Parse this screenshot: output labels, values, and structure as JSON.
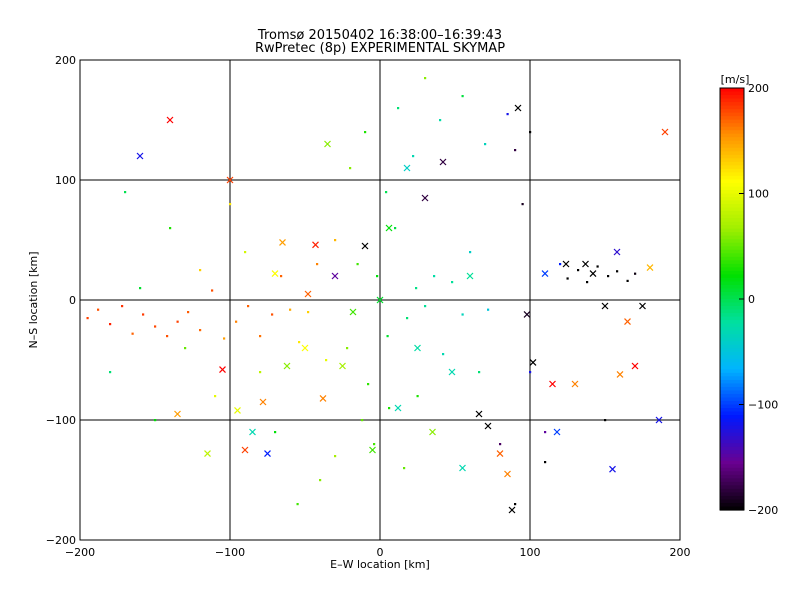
{
  "chart_data": {
    "type": "scatter",
    "title": "Tromsø 20150402 16:38:00–16:39:43",
    "subtitle": "RwPretec (8p) EXPERIMENTAL SKYMAP",
    "xlabel": "E–W location [km]",
    "ylabel": "N–S location [km]",
    "xlim": [
      -200,
      200
    ],
    "ylim": [
      -200,
      200
    ],
    "xticks": [
      -200,
      -100,
      0,
      100,
      200
    ],
    "yticks": [
      -200,
      -100,
      0,
      100,
      200
    ],
    "grid": true,
    "grid_lines": {
      "x": [
        -100,
        0,
        100
      ],
      "y": [
        -100,
        0,
        100
      ]
    },
    "colorbar": {
      "label": "[m/s]",
      "range": [
        -200,
        200
      ],
      "ticks": [
        200,
        100,
        0,
        -100,
        -200
      ],
      "colors": [
        "#000000",
        "#6a0090",
        "#0018ff",
        "#00b4ff",
        "#00e0a0",
        "#00e000",
        "#a0ef00",
        "#ffff00",
        "#ff9000",
        "#ff0000"
      ]
    },
    "markers": [
      "dot",
      "cross"
    ],
    "series": [
      {
        "values": [
          [
            -195,
            -15,
            180
          ],
          [
            -188,
            -8,
            175
          ],
          [
            -180,
            -20,
            190
          ],
          [
            -172,
            -5,
            185
          ],
          [
            -165,
            -28,
            170
          ],
          [
            -158,
            -12,
            182
          ],
          [
            -150,
            -22,
            178
          ],
          [
            -142,
            -30,
            175
          ],
          [
            -135,
            -18,
            180
          ],
          [
            -128,
            -10,
            172
          ],
          [
            -120,
            -25,
            168
          ],
          [
            -112,
            8,
            176
          ],
          [
            -104,
            -32,
            150
          ],
          [
            -96,
            -18,
            160
          ],
          [
            -88,
            -5,
            170
          ],
          [
            -80,
            -30,
            165
          ],
          [
            -72,
            -12,
            175
          ],
          [
            -66,
            20,
            170
          ],
          [
            -60,
            -8,
            145
          ],
          [
            -54,
            -35,
            120
          ],
          [
            -48,
            -10,
            130
          ],
          [
            -42,
            30,
            160
          ],
          [
            -36,
            -50,
            100
          ],
          [
            -30,
            50,
            140
          ],
          [
            -22,
            -40,
            60
          ],
          [
            -15,
            30,
            40
          ],
          [
            -8,
            -70,
            35
          ],
          [
            -2,
            20,
            20
          ],
          [
            5,
            -30,
            10
          ],
          [
            10,
            60,
            5
          ],
          [
            18,
            -15,
            -10
          ],
          [
            24,
            10,
            -15
          ],
          [
            30,
            -5,
            -20
          ],
          [
            36,
            20,
            -25
          ],
          [
            42,
            -45,
            -30
          ],
          [
            48,
            15,
            -20
          ],
          [
            55,
            -12,
            -35
          ],
          [
            60,
            40,
            -40
          ],
          [
            66,
            -60,
            -10
          ],
          [
            72,
            -8,
            -50
          ],
          [
            -12,
            -100,
            50
          ],
          [
            -4,
            -120,
            40
          ],
          [
            6,
            -90,
            30
          ],
          [
            16,
            -140,
            50
          ],
          [
            25,
            -80,
            30
          ],
          [
            -30,
            -130,
            70
          ],
          [
            -20,
            110,
            60
          ],
          [
            -10,
            140,
            30
          ],
          [
            4,
            90,
            0
          ],
          [
            12,
            160,
            -10
          ],
          [
            22,
            120,
            -30
          ],
          [
            30,
            185,
            60
          ],
          [
            40,
            150,
            -25
          ],
          [
            55,
            170,
            5
          ],
          [
            70,
            130,
            -35
          ],
          [
            85,
            155,
            -120
          ],
          [
            -40,
            -150,
            60
          ],
          [
            -55,
            -170,
            40
          ],
          [
            -70,
            -110,
            20
          ],
          [
            -80,
            -60,
            80
          ],
          [
            -90,
            40,
            90
          ],
          [
            -100,
            80,
            120
          ],
          [
            -110,
            -80,
            100
          ],
          [
            -120,
            25,
            130
          ],
          [
            -130,
            -40,
            50
          ],
          [
            -140,
            60,
            30
          ],
          [
            -150,
            -100,
            20
          ],
          [
            -160,
            10,
            10
          ],
          [
            -170,
            90,
            0
          ],
          [
            -180,
            -60,
            -10
          ],
          [
            80,
            -120,
            -170
          ],
          [
            90,
            -170,
            -200
          ],
          [
            100,
            -60,
            -120
          ],
          [
            110,
            -110,
            -150
          ],
          [
            120,
            30,
            -110
          ],
          [
            125,
            18,
            -205
          ],
          [
            132,
            25,
            -210
          ],
          [
            138,
            15,
            -200
          ],
          [
            145,
            28,
            -205
          ],
          [
            152,
            20,
            -210
          ],
          [
            158,
            24,
            -200
          ],
          [
            165,
            16,
            -205
          ],
          [
            170,
            22,
            -195
          ],
          [
            150,
            -100,
            -200
          ],
          [
            110,
            -135,
            -200
          ],
          [
            95,
            80,
            -190
          ],
          [
            100,
            140,
            -200
          ],
          [
            90,
            125,
            -180
          ]
        ]
      },
      {
        "values": [
          [
            -140,
            150,
            200
          ],
          [
            -160,
            120,
            -120
          ],
          [
            -100,
            100,
            180
          ],
          [
            -105,
            -58,
            200
          ],
          [
            -90,
            -125,
            180
          ],
          [
            -78,
            -85,
            160
          ],
          [
            -75,
            -128,
            -110
          ],
          [
            -70,
            22,
            110
          ],
          [
            -65,
            48,
            150
          ],
          [
            -50,
            -40,
            110
          ],
          [
            -48,
            5,
            170
          ],
          [
            -43,
            46,
            190
          ],
          [
            -38,
            -82,
            160
          ],
          [
            -35,
            130,
            60
          ],
          [
            -30,
            20,
            -150
          ],
          [
            -25,
            -55,
            70
          ],
          [
            -18,
            -10,
            40
          ],
          [
            -10,
            45,
            -210
          ],
          [
            -5,
            -125,
            40
          ],
          [
            0,
            0,
            10
          ],
          [
            6,
            60,
            20
          ],
          [
            12,
            -90,
            -30
          ],
          [
            18,
            110,
            -40
          ],
          [
            25,
            -40,
            -25
          ],
          [
            30,
            85,
            -180
          ],
          [
            35,
            -110,
            60
          ],
          [
            42,
            115,
            -180
          ],
          [
            48,
            -60,
            -30
          ],
          [
            55,
            -140,
            -30
          ],
          [
            60,
            20,
            -20
          ],
          [
            66,
            -95,
            -210
          ],
          [
            72,
            -105,
            -210
          ],
          [
            80,
            -128,
            170
          ],
          [
            85,
            -145,
            160
          ],
          [
            88,
            -175,
            -210
          ],
          [
            92,
            160,
            -200
          ],
          [
            98,
            -12,
            -190
          ],
          [
            102,
            -52,
            -200
          ],
          [
            110,
            22,
            -100
          ],
          [
            115,
            -70,
            200
          ],
          [
            118,
            -110,
            -100
          ],
          [
            124,
            30,
            -200
          ],
          [
            130,
            -70,
            160
          ],
          [
            137,
            30,
            -205
          ],
          [
            142,
            22,
            -210
          ],
          [
            150,
            -5,
            -200
          ],
          [
            155,
            -141,
            -120
          ],
          [
            158,
            40,
            -130
          ],
          [
            160,
            -62,
            160
          ],
          [
            165,
            -18,
            170
          ],
          [
            170,
            -55,
            200
          ],
          [
            175,
            -5,
            -200
          ],
          [
            180,
            27,
            140
          ],
          [
            186,
            -100,
            -120
          ],
          [
            190,
            140,
            180
          ],
          [
            -135,
            -95,
            150
          ],
          [
            -115,
            -128,
            80
          ],
          [
            -95,
            -92,
            100
          ],
          [
            -85,
            -110,
            -30
          ],
          [
            -62,
            -55,
            60
          ]
        ]
      }
    ]
  }
}
